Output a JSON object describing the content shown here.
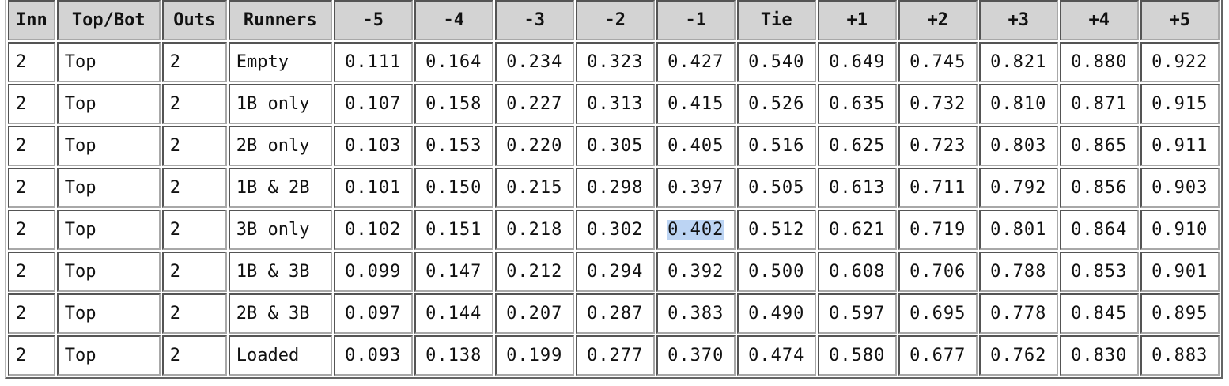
{
  "table": {
    "headers": [
      "Inn",
      "Top/Bot",
      "Outs",
      "Runners",
      "-5",
      "-4",
      "-3",
      "-2",
      "-1",
      "Tie",
      "+1",
      "+2",
      "+3",
      "+4",
      "+5"
    ],
    "rows": [
      [
        "2",
        "Top",
        "2",
        "Empty",
        "0.111",
        "0.164",
        "0.234",
        "0.323",
        "0.427",
        "0.540",
        "0.649",
        "0.745",
        "0.821",
        "0.880",
        "0.922"
      ],
      [
        "2",
        "Top",
        "2",
        "1B only",
        "0.107",
        "0.158",
        "0.227",
        "0.313",
        "0.415",
        "0.526",
        "0.635",
        "0.732",
        "0.810",
        "0.871",
        "0.915"
      ],
      [
        "2",
        "Top",
        "2",
        "2B only",
        "0.103",
        "0.153",
        "0.220",
        "0.305",
        "0.405",
        "0.516",
        "0.625",
        "0.723",
        "0.803",
        "0.865",
        "0.911"
      ],
      [
        "2",
        "Top",
        "2",
        "1B & 2B",
        "0.101",
        "0.150",
        "0.215",
        "0.298",
        "0.397",
        "0.505",
        "0.613",
        "0.711",
        "0.792",
        "0.856",
        "0.903"
      ],
      [
        "2",
        "Top",
        "2",
        "3B only",
        "0.102",
        "0.151",
        "0.218",
        "0.302",
        "0.402",
        "0.512",
        "0.621",
        "0.719",
        "0.801",
        "0.864",
        "0.910"
      ],
      [
        "2",
        "Top",
        "2",
        "1B & 3B",
        "0.099",
        "0.147",
        "0.212",
        "0.294",
        "0.392",
        "0.500",
        "0.608",
        "0.706",
        "0.788",
        "0.853",
        "0.901"
      ],
      [
        "2",
        "Top",
        "2",
        "2B & 3B",
        "0.097",
        "0.144",
        "0.207",
        "0.287",
        "0.383",
        "0.490",
        "0.597",
        "0.695",
        "0.778",
        "0.845",
        "0.895"
      ],
      [
        "2",
        "Top",
        "2",
        "Loaded",
        "0.093",
        "0.138",
        "0.199",
        "0.277",
        "0.370",
        "0.474",
        "0.580",
        "0.677",
        "0.762",
        "0.830",
        "0.883"
      ]
    ],
    "selection": {
      "row": 4,
      "col": 8,
      "color": "#bcd4f3"
    }
  }
}
